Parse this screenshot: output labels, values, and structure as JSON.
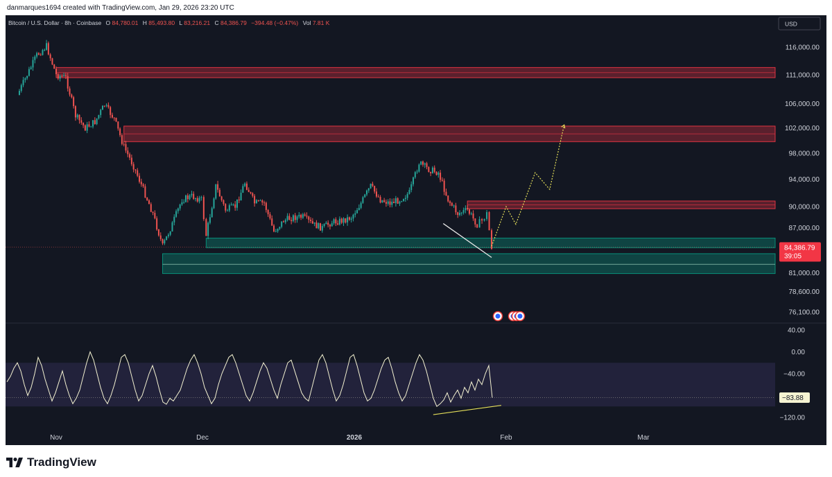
{
  "header": {
    "credit": "danmarques1694 created with TradingView.com, Jan 29, 2026 23:20 UTC"
  },
  "legend": {
    "symbol": "Bitcoin / U.S. Dollar · 8h · Coinbase",
    "o_label": "O",
    "o_value": "84,780.01",
    "h_label": "H",
    "h_value": "85,493.80",
    "l_label": "L",
    "l_value": "83,216.21",
    "c_label": "C",
    "c_value": "84,386.79",
    "change": "−394.48 (−0.47%)",
    "vol_label": "Vol",
    "vol_value": "7.81 K"
  },
  "currency_button": "USD",
  "price_badge": {
    "price": "84,386.79",
    "countdown": "39:05"
  },
  "osc_badge": "−83.88",
  "brand": "TradingView",
  "colors": {
    "background": "#131722",
    "up": "#26a69a",
    "down": "#ef5350",
    "resistance_zone": "#f23645",
    "support_zone": "#089981",
    "oscillator_line": "#f5f3d2",
    "oscillator_band": "#262540",
    "divergence_line": "#e6e05a"
  },
  "chart_data": [
    {
      "type": "candlestick",
      "title": "Bitcoin / U.S. Dollar · 8h · Coinbase",
      "x_tick_labels": [
        "Nov",
        "Dec",
        "2026",
        "Feb",
        "Mar"
      ],
      "y_tick_labels": [
        "116,000.00",
        "111,000.00",
        "106,000.00",
        "102,000.00",
        "98,000.00",
        "94,000.00",
        "90,000.00",
        "87,000.00",
        "81,000.00",
        "78,600.00",
        "76,100.00"
      ],
      "y_log_scale": true,
      "grid": false,
      "price_path": [
        [
          "2025-10-23",
          107500
        ],
        [
          "2025-10-25",
          111000
        ],
        [
          "2025-10-27",
          114500
        ],
        [
          "2025-10-29",
          116200
        ],
        [
          "2025-10-31",
          111000
        ],
        [
          "2025-11-02",
          110500
        ],
        [
          "2025-11-04",
          104000
        ],
        [
          "2025-11-06",
          102000
        ],
        [
          "2025-11-08",
          103000
        ],
        [
          "2025-11-10",
          105800
        ],
        [
          "2025-11-12",
          103500
        ],
        [
          "2025-11-14",
          99000
        ],
        [
          "2025-11-16",
          96000
        ],
        [
          "2025-11-18",
          92500
        ],
        [
          "2025-11-20",
          89000
        ],
        [
          "2025-11-22",
          84500
        ],
        [
          "2025-11-24",
          87500
        ],
        [
          "2025-11-26",
          91000
        ],
        [
          "2025-11-28",
          91500
        ],
        [
          "2025-11-30",
          91000
        ],
        [
          "2025-12-01",
          86000
        ],
        [
          "2025-12-03",
          93000
        ],
        [
          "2025-12-05",
          89500
        ],
        [
          "2025-12-07",
          90000
        ],
        [
          "2025-12-09",
          93500
        ],
        [
          "2025-12-11",
          90500
        ],
        [
          "2025-12-13",
          90500
        ],
        [
          "2025-12-15",
          86500
        ],
        [
          "2025-12-17",
          88000
        ],
        [
          "2025-12-19",
          88500
        ],
        [
          "2025-12-21",
          88500
        ],
        [
          "2025-12-23",
          87500
        ],
        [
          "2025-12-25",
          87000
        ],
        [
          "2025-12-27",
          87800
        ],
        [
          "2025-12-29",
          88000
        ],
        [
          "2025-12-31",
          88500
        ],
        [
          "2026-01-02",
          90500
        ],
        [
          "2026-01-04",
          93000
        ],
        [
          "2026-01-06",
          91000
        ],
        [
          "2026-01-08",
          90500
        ],
        [
          "2026-01-10",
          91000
        ],
        [
          "2026-01-12",
          92000
        ],
        [
          "2026-01-14",
          96500
        ],
        [
          "2026-01-16",
          95500
        ],
        [
          "2026-01-18",
          95000
        ],
        [
          "2026-01-20",
          91000
        ],
        [
          "2026-01-22",
          89000
        ],
        [
          "2026-01-24",
          89500
        ],
        [
          "2026-01-26",
          87500
        ],
        [
          "2026-01-27",
          88000
        ],
        [
          "2026-01-28",
          89000
        ],
        [
          "2026-01-29",
          84386.79
        ]
      ],
      "projection_path": [
        [
          "2026-01-29",
          84500
        ],
        [
          "2026-02-01",
          90000
        ],
        [
          "2026-02-03",
          87500
        ],
        [
          "2026-02-07",
          95000
        ],
        [
          "2026-02-10",
          92500
        ],
        [
          "2026-02-13",
          102500
        ]
      ],
      "resistance_zones": [
        {
          "low": 110500,
          "high": 112300,
          "start": "2025-10-31"
        },
        {
          "low": 99800,
          "high": 102300,
          "start": "2025-11-14"
        },
        {
          "low": 89700,
          "high": 90800,
          "start": "2026-01-24"
        }
      ],
      "support_zones": [
        {
          "low": 84300,
          "high": 85600,
          "start": "2025-12-01"
        },
        {
          "low": 80900,
          "high": 83500,
          "start": "2025-11-22"
        }
      ],
      "support_line_level": 82100,
      "trend_line": [
        [
          "2026-01-19",
          87600
        ],
        [
          "2026-01-29",
          83000
        ]
      ],
      "current_price": 84386.79,
      "event_markers": [
        "2026-01-28",
        "2026-01-29",
        "2026-01-30",
        "2026-01-31"
      ]
    },
    {
      "type": "line",
      "y_tick_labels": [
        "40.00",
        "0.00",
        "−40.00",
        "−120.00"
      ],
      "ylim": [
        -130,
        45
      ],
      "band": [
        -100,
        -20
      ],
      "last_value": -83.88,
      "series": [
        {
          "values": [
            -55,
            -45,
            -30,
            -20,
            -35,
            -60,
            -80,
            -65,
            -40,
            -10,
            -25,
            -50,
            -70,
            -90,
            -75,
            -55,
            -35,
            -60,
            -80,
            -95,
            -85,
            -70,
            -45,
            -20,
            0,
            -15,
            -40,
            -65,
            -85,
            -95,
            -80,
            -60,
            -35,
            -10,
            -5,
            -20,
            -45,
            -70,
            -90,
            -80,
            -60,
            -40,
            -25,
            -45,
            -70,
            -92,
            -96,
            -85,
            -90,
            -80,
            -70,
            -50,
            -30,
            -15,
            -5,
            -20,
            -40,
            -65,
            -80,
            -95,
            -85,
            -60,
            -40,
            -25,
            -10,
            -5,
            -20,
            -40,
            -60,
            -80,
            -90,
            -75,
            -55,
            -35,
            -20,
            -30,
            -50,
            -70,
            -85,
            -60,
            -40,
            -20,
            -15,
            -35,
            -55,
            -75,
            -85,
            -90,
            -65,
            -40,
            -15,
            -5,
            -20,
            -45,
            -70,
            -90,
            -80,
            -60,
            -35,
            -10,
            -5,
            -25,
            -50,
            -75,
            -90,
            -85,
            -70,
            -50,
            -30,
            -15,
            -10,
            -30,
            -55,
            -75,
            -90,
            -80,
            -60,
            -40,
            -20,
            -5,
            -15,
            -35,
            -60,
            -85,
            -100,
            -95,
            -88,
            -75,
            -92,
            -80,
            -70,
            -85,
            -65,
            -75,
            -55,
            -70,
            -50,
            -60,
            -40,
            -25,
            -83.88
          ]
        }
      ],
      "divergence_line": [
        [
          0.72,
          -115
        ],
        [
          0.97,
          -98
        ]
      ]
    }
  ]
}
